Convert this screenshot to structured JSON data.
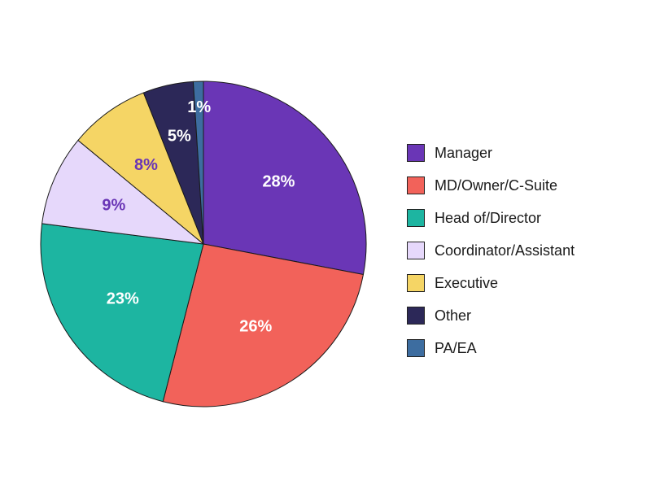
{
  "chart_data": {
    "type": "pie",
    "title": "",
    "categories": [
      "Manager",
      "MD/Owner/C-Suite",
      "Head of/Director",
      "Coordinator/Assistant",
      "Executive",
      "Other",
      "PA/EA"
    ],
    "values": [
      28,
      26,
      23,
      9,
      8,
      5,
      1
    ],
    "labels": [
      "28%",
      "26%",
      "23%",
      "9%",
      "8%",
      "5%",
      "1%"
    ],
    "colors": [
      "#6a36b6",
      "#f2625a",
      "#1db5a1",
      "#e6d8fb",
      "#f5d565",
      "#2c2858",
      "#3d6da0"
    ],
    "label_colors": [
      "#ffffff",
      "#ffffff",
      "#ffffff",
      "#6a36b6",
      "#6a36b6",
      "#ffffff",
      "#ffffff"
    ],
    "start_angle": "top",
    "direction": "clockwise",
    "legend_position": "right"
  }
}
